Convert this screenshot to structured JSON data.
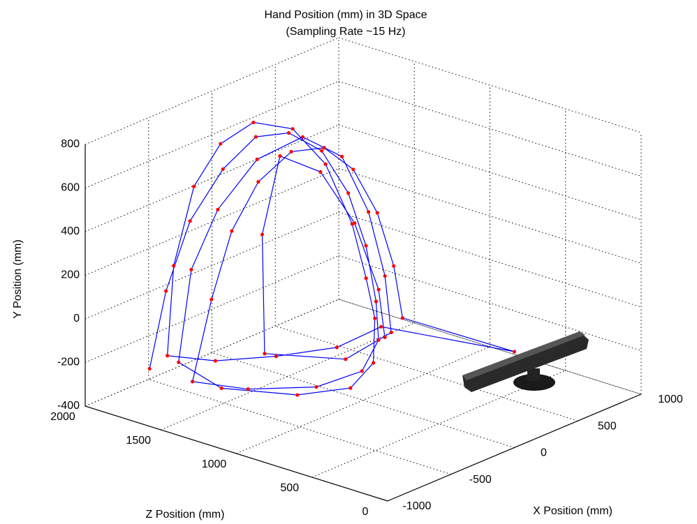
{
  "chart_data": {
    "type": "line3d",
    "title": "Hand Position (mm) in 3D Space",
    "subtitle": "(Sampling Rate ~15 Hz)",
    "x_label": "X Position (mm)",
    "y_label": "Y Position (mm)",
    "z_label": "Z Position (mm)",
    "color": "#0000ff",
    "marker_color": "#ff0000",
    "grid": true,
    "xlim": [
      -1000,
      1000
    ],
    "xticks": [
      -1000,
      -500,
      0,
      500,
      1000
    ],
    "ylim": [
      -400,
      800
    ],
    "yticks": [
      -400,
      -200,
      0,
      200,
      400,
      600,
      800
    ],
    "zlim": [
      0,
      2000
    ],
    "zticks": [
      0,
      500,
      1000,
      1500,
      2000
    ],
    "x": [
      -850,
      -780,
      -650,
      -450,
      -250,
      -50,
      150,
      300,
      380,
      400,
      300,
      50,
      -250,
      -550,
      -750,
      -600,
      -500,
      -350,
      -150,
      50,
      220,
      350,
      420,
      430,
      0,
      380,
      150,
      -150,
      -450,
      -650,
      -600,
      -500,
      -350,
      -150,
      100,
      300,
      450,
      500,
      450,
      200,
      -100,
      -400,
      -700,
      -800,
      -700,
      -550,
      -300,
      0,
      250,
      400,
      470,
      400,
      100,
      -300,
      -200,
      0,
      200,
      350,
      420,
      350
    ],
    "y": [
      -200,
      150,
      450,
      650,
      760,
      740,
      620,
      400,
      150,
      -100,
      -230,
      -290,
      -300,
      -280,
      -240,
      100,
      400,
      600,
      700,
      680,
      550,
      330,
      80,
      -150,
      40,
      -200,
      -260,
      -260,
      -240,
      -200,
      200,
      550,
      720,
      780,
      700,
      500,
      200,
      -50,
      -200,
      -300,
      -320,
      -300,
      -250,
      -150,
      250,
      500,
      680,
      720,
      580,
      300,
      0,
      -220,
      -280,
      -200,
      300,
      600,
      500,
      250,
      -50,
      -230
    ],
    "z": [
      1700,
      1650,
      1600,
      1550,
      1500,
      1450,
      1400,
      1350,
      1300,
      1250,
      1150,
      1050,
      1100,
      1300,
      1500,
      1500,
      1450,
      1400,
      1350,
      1300,
      1250,
      1200,
      1150,
      1100,
      0,
      1200,
      1300,
      1450,
      1600,
      1750,
      1750,
      1700,
      1650,
      1600,
      1550,
      1500,
      1450,
      1400,
      1300,
      1100,
      1000,
      1100,
      1350,
      1550,
      1550,
      1500,
      1450,
      1400,
      1350,
      1300,
      1250,
      1150,
      1200,
      1400,
      1500,
      1550,
      1450,
      1350,
      1250,
      1150
    ]
  }
}
